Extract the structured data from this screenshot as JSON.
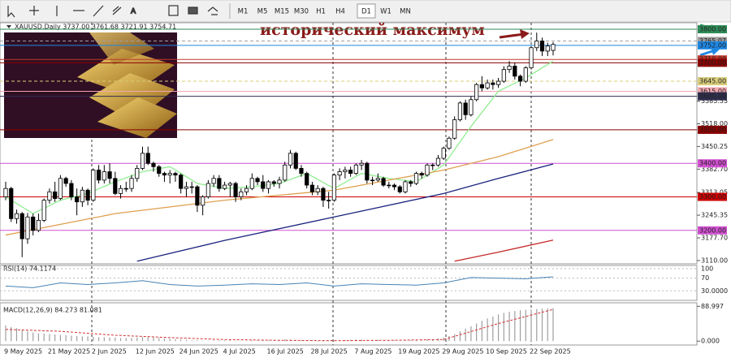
{
  "toolbar": {
    "timeframes": [
      "M1",
      "M5",
      "M15",
      "M30",
      "H1",
      "H4",
      "D1",
      "W1",
      "MN"
    ],
    "active": 6
  },
  "chart_data": [
    {
      "type": "candlestick",
      "title": "XAUUSD,Daily 3737.00 3761.68 3721.91 3754.71",
      "annotation": "исторический максимум",
      "categories": [
        "9 May 2025",
        null,
        null,
        null,
        null,
        null,
        null,
        null,
        "21 May 2025",
        null,
        null,
        null,
        null,
        null,
        null,
        null,
        "2 Jun 2025",
        null,
        null,
        null,
        null,
        null,
        null,
        null,
        "12 Jun 2025",
        null,
        null,
        null,
        null,
        null,
        null,
        null,
        "24 Jun 2025",
        null,
        null,
        null,
        null,
        null,
        null,
        null,
        "4 Jul 2025",
        null,
        null,
        null,
        null,
        null,
        null,
        null,
        "16 Jul 2025",
        null,
        null,
        null,
        null,
        null,
        null,
        null,
        "28 Jul 2025",
        null,
        null,
        null,
        null,
        null,
        null,
        null,
        "7 Aug 2025",
        null,
        null,
        null,
        null,
        null,
        null,
        null,
        "19 Aug 2025",
        null,
        null,
        null,
        null,
        null,
        null,
        null,
        "29 Aug 2025",
        null,
        null,
        null,
        null,
        null,
        null,
        null,
        "10 Sep 2025",
        null,
        null,
        null,
        null,
        null,
        null,
        null,
        "22 Sep 2025",
        null,
        null,
        null,
        null
      ],
      "ohlc": [
        [
          3300,
          3345,
          3290,
          3325
        ],
        [
          3325,
          3330,
          3225,
          3235
        ],
        [
          3235,
          3262,
          3220,
          3250
        ],
        [
          3250,
          3255,
          3120,
          3175
        ],
        [
          3175,
          3252,
          3160,
          3240
        ],
        [
          3240,
          3250,
          3185,
          3200
        ],
        [
          3200,
          3250,
          3195,
          3230
        ],
        [
          3230,
          3295,
          3225,
          3290
        ],
        [
          3290,
          3325,
          3280,
          3315
        ],
        [
          3315,
          3345,
          3285,
          3295
        ],
        [
          3295,
          3365,
          3290,
          3355
        ],
        [
          3355,
          3360,
          3330,
          3340
        ],
        [
          3340,
          3350,
          3290,
          3300
        ],
        [
          3300,
          3325,
          3245,
          3285
        ],
        [
          3285,
          3330,
          3270,
          3320
        ],
        [
          3320,
          3325,
          3275,
          3290
        ],
        [
          3290,
          3385,
          3285,
          3380
        ],
        [
          3380,
          3395,
          3340,
          3350
        ],
        [
          3350,
          3395,
          3340,
          3375
        ],
        [
          3375,
          3400,
          3340,
          3355
        ],
        [
          3355,
          3375,
          3305,
          3310
        ],
        [
          3310,
          3335,
          3295,
          3325
        ],
        [
          3325,
          3345,
          3315,
          3325
        ],
        [
          3325,
          3365,
          3315,
          3355
        ],
        [
          3355,
          3395,
          3345,
          3385
        ],
        [
          3385,
          3450,
          3380,
          3430
        ],
        [
          3430,
          3450,
          3395,
          3400
        ],
        [
          3400,
          3405,
          3375,
          3390
        ],
        [
          3390,
          3395,
          3360,
          3370
        ],
        [
          3370,
          3375,
          3345,
          3365
        ],
        [
          3365,
          3380,
          3340,
          3370
        ],
        [
          3370,
          3375,
          3345,
          3365
        ],
        [
          3365,
          3370,
          3310,
          3325
        ],
        [
          3325,
          3345,
          3300,
          3330
        ],
        [
          3330,
          3345,
          3310,
          3330
        ],
        [
          3330,
          3335,
          3255,
          3275
        ],
        [
          3275,
          3305,
          3245,
          3300
        ],
        [
          3300,
          3350,
          3295,
          3340
        ],
        [
          3340,
          3365,
          3330,
          3355
        ],
        [
          3355,
          3365,
          3315,
          3325
        ],
        [
          3325,
          3345,
          3320,
          3335
        ],
        [
          3335,
          3345,
          3300,
          3340
        ],
        [
          3340,
          3345,
          3285,
          3300
        ],
        [
          3300,
          3325,
          3290,
          3315
        ],
        [
          3315,
          3335,
          3305,
          3325
        ],
        [
          3325,
          3370,
          3320,
          3355
        ],
        [
          3355,
          3360,
          3335,
          3345
        ],
        [
          3345,
          3365,
          3315,
          3325
        ],
        [
          3325,
          3350,
          3310,
          3345
        ],
        [
          3345,
          3350,
          3330,
          3340
        ],
        [
          3340,
          3360,
          3325,
          3350
        ],
        [
          3350,
          3405,
          3345,
          3395
        ],
        [
          3395,
          3440,
          3385,
          3430
        ],
        [
          3430,
          3435,
          3380,
          3385
        ],
        [
          3385,
          3395,
          3360,
          3370
        ],
        [
          3370,
          3375,
          3325,
          3335
        ],
        [
          3335,
          3345,
          3305,
          3315
        ],
        [
          3315,
          3335,
          3305,
          3325
        ],
        [
          3325,
          3330,
          3270,
          3290
        ],
        [
          3290,
          3315,
          3265,
          3290
        ],
        [
          3290,
          3370,
          3285,
          3365
        ],
        [
          3365,
          3385,
          3350,
          3375
        ],
        [
          3375,
          3390,
          3355,
          3380
        ],
        [
          3380,
          3390,
          3360,
          3370
        ],
        [
          3370,
          3400,
          3365,
          3395
        ],
        [
          3395,
          3410,
          3380,
          3400
        ],
        [
          3400,
          3405,
          3340,
          3350
        ],
        [
          3350,
          3360,
          3335,
          3350
        ],
        [
          3350,
          3370,
          3345,
          3355
        ],
        [
          3355,
          3360,
          3330,
          3335
        ],
        [
          3335,
          3345,
          3325,
          3335
        ],
        [
          3335,
          3340,
          3320,
          3330
        ],
        [
          3330,
          3335,
          3310,
          3315
        ],
        [
          3315,
          3350,
          3310,
          3345
        ],
        [
          3345,
          3350,
          3330,
          3340
        ],
        [
          3340,
          3375,
          3335,
          3370
        ],
        [
          3370,
          3375,
          3355,
          3365
        ],
        [
          3365,
          3400,
          3360,
          3395
        ],
        [
          3395,
          3400,
          3380,
          3395
        ],
        [
          3395,
          3425,
          3390,
          3415
        ],
        [
          3415,
          3450,
          3410,
          3445
        ],
        [
          3445,
          3480,
          3440,
          3475
        ],
        [
          3475,
          3540,
          3470,
          3530
        ],
        [
          3530,
          3585,
          3525,
          3580
        ],
        [
          3580,
          3590,
          3530,
          3545
        ],
        [
          3545,
          3600,
          3540,
          3590
        ],
        [
          3590,
          3640,
          3585,
          3635
        ],
        [
          3635,
          3660,
          3615,
          3625
        ],
        [
          3625,
          3650,
          3620,
          3640
        ],
        [
          3640,
          3650,
          3620,
          3635
        ],
        [
          3635,
          3655,
          3625,
          3645
        ],
        [
          3645,
          3690,
          3640,
          3680
        ],
        [
          3680,
          3705,
          3670,
          3690
        ],
        [
          3690,
          3700,
          3650,
          3660
        ],
        [
          3660,
          3665,
          3630,
          3645
        ],
        [
          3645,
          3690,
          3640,
          3685
        ],
        [
          3685,
          3750,
          3680,
          3745
        ],
        [
          3745,
          3790,
          3735,
          3765
        ],
        [
          3765,
          3775,
          3720,
          3735
        ],
        [
          3735,
          3760,
          3720,
          3750
        ],
        [
          3737,
          3761.68,
          3721.91,
          3754.71
        ]
      ],
      "series": [
        {
          "color": "#90ee90",
          "x": [
            0,
            5,
            10,
            15,
            20,
            25,
            30,
            35,
            40,
            45,
            50,
            55,
            60,
            65,
            70,
            75,
            80,
            85,
            90,
            95,
            100
          ],
          "values": [
            3300,
            3250,
            3290,
            3310,
            3345,
            3375,
            3390,
            3340,
            3325,
            3330,
            3340,
            3370,
            3325,
            3370,
            3355,
            3345,
            3395,
            3510,
            3615,
            3655,
            3705
          ]
        },
        {
          "color": "#e0a050",
          "x": [
            0,
            20,
            40,
            60,
            80,
            90,
            100
          ],
          "values": [
            3186,
            3250,
            3290,
            3320,
            3380,
            3420,
            3471
          ]
        },
        {
          "color": "#1a237e",
          "x": [
            24,
            40,
            60,
            80,
            90,
            100
          ],
          "values": [
            3108,
            3170,
            3240,
            3310,
            3355,
            3398
          ]
        },
        {
          "color": "#c62828",
          "x": [
            82,
            90,
            100
          ],
          "values": [
            3108,
            3135,
            3171
          ]
        }
      ],
      "levels": [
        {
          "value": 3800,
          "label": "3800.00",
          "color": "#2e8b57",
          "style": "solid"
        },
        {
          "value": 3765.07,
          "label": "3765.07",
          "color": "#9e9e9e",
          "style": "dashed"
        },
        {
          "value": 3752,
          "label": "3752.00",
          "color": "#1e88e5",
          "style": "solid"
        },
        {
          "value": 3710,
          "label": "3710.00",
          "color": "#c0392b",
          "style": "solid"
        },
        {
          "value": 3700,
          "label": "3700.00",
          "color": "#8b0000",
          "style": "solid"
        },
        {
          "value": 3645,
          "label": "3645.00",
          "color": "#d8cc7a",
          "style": "dashed"
        },
        {
          "value": 3615,
          "label": "3615.00",
          "color": "#f2a7b0",
          "style": "solid"
        },
        {
          "value": 3600,
          "label": "3600.00",
          "color": "#2f2f4f",
          "style": "solid"
        },
        {
          "value": 3500,
          "label": "3500.00",
          "color": "#8b0000",
          "style": "solid"
        },
        {
          "value": 3400,
          "label": "3400.00",
          "color": "#d050d0",
          "style": "solid"
        },
        {
          "value": 3300,
          "label": "3300.00",
          "color": "#cc0000",
          "style": "solid"
        },
        {
          "value": 3200,
          "label": "3200.00",
          "color": "#d050d0",
          "style": "solid"
        }
      ],
      "ylim": [
        3100.2,
        3819.5
      ],
      "yticks": [
        {
          "value": 3585.55,
          "label": "3585.55"
        },
        {
          "value": 3518,
          "label": "3518.00"
        },
        {
          "value": 3450.25,
          "label": "3450.25"
        },
        {
          "value": 3382.7,
          "label": "3382.70"
        },
        {
          "value": 3313.05,
          "label": "3313.05"
        },
        {
          "value": 3245.35,
          "label": "3245.35"
        },
        {
          "value": 3177.7,
          "label": "3177.70"
        },
        {
          "value": 3110,
          "label": "3110.00"
        }
      ]
    },
    {
      "type": "line",
      "title": "RSI(14) 74.1174",
      "color": "#4682b4",
      "x": [
        0,
        5,
        10,
        15,
        20,
        25,
        30,
        35,
        40,
        45,
        50,
        55,
        60,
        65,
        70,
        75,
        80,
        85,
        90,
        95,
        100
      ],
      "values": [
        45,
        40,
        55,
        50,
        55,
        62,
        50,
        45,
        48,
        52,
        50,
        55,
        45,
        52,
        50,
        48,
        55,
        72,
        70,
        68,
        74.1174
      ],
      "ylim": [
        0,
        110
      ],
      "yticks": [
        100,
        70,
        {
          "value": 30,
          "label": "30.0000"
        }
      ]
    },
    {
      "type": "bar",
      "title": "MACD(12,26,9) 84.273 81.081",
      "color": "#9e9e9e",
      "values": [
        40,
        36,
        33,
        28,
        25,
        22,
        20,
        19,
        18,
        17,
        16,
        15,
        14,
        13,
        12,
        12,
        11,
        10,
        10,
        9,
        9,
        8,
        8,
        8,
        9,
        10,
        10,
        9,
        8,
        7,
        6,
        5,
        4,
        3,
        2,
        2,
        1,
        1,
        2,
        2,
        2,
        2,
        1,
        1,
        1,
        2,
        2,
        2,
        2,
        2,
        3,
        4,
        4,
        3,
        2,
        1,
        1,
        0,
        0,
        1,
        2,
        2,
        3,
        3,
        4,
        4,
        3,
        3,
        3,
        2,
        2,
        2,
        1,
        2,
        2,
        3,
        3,
        4,
        5,
        7,
        9,
        13,
        18,
        25,
        32,
        38,
        45,
        52,
        58,
        63,
        68,
        72,
        75,
        77,
        79,
        80,
        81,
        82,
        83,
        84,
        84.273
      ],
      "signal": {
        "color": "#d32f2f",
        "x": [
          0,
          10,
          20,
          30,
          40,
          50,
          60,
          70,
          80,
          90,
          100
        ],
        "values": [
          30,
          25,
          15,
          9,
          4,
          2,
          1,
          2,
          4,
          45,
          81.081
        ]
      },
      "ylim": [
        -10,
        98
      ],
      "yticks": [
        88.997,
        {
          "value": 0,
          "label": "0.000"
        }
      ]
    }
  ]
}
